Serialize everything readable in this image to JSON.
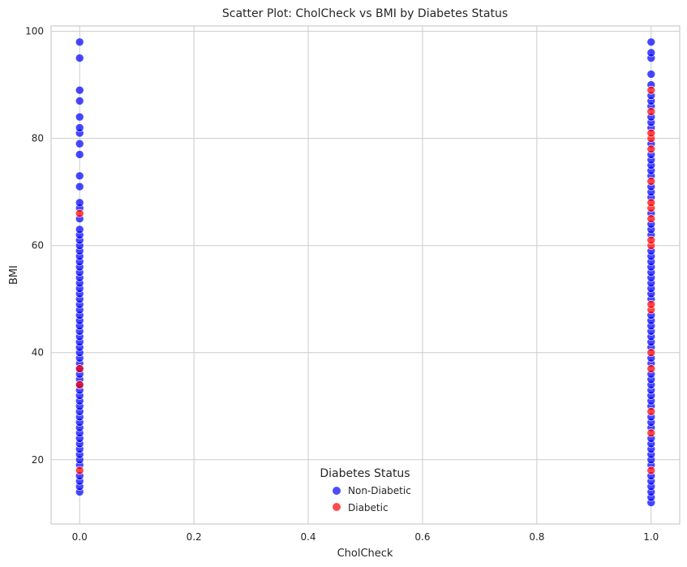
{
  "chart_data": {
    "type": "scatter",
    "title": "Scatter Plot: CholCheck vs BMI by Diabetes Status",
    "xlabel": "CholCheck",
    "ylabel": "BMI",
    "xlim": [
      -0.05,
      1.05
    ],
    "ylim": [
      8,
      101
    ],
    "x_ticks": [
      0.0,
      0.2,
      0.4,
      0.6,
      0.8,
      1.0
    ],
    "x_tick_labels": [
      "0.0",
      "0.2",
      "0.4",
      "0.6",
      "0.8",
      "1.0"
    ],
    "y_ticks": [
      20,
      40,
      60,
      80,
      100
    ],
    "y_tick_labels": [
      "20",
      "40",
      "60",
      "80",
      "100"
    ],
    "grid": true,
    "legend": {
      "title": "Diabetes Status",
      "position": "lower-center"
    },
    "series": [
      {
        "name": "Non-Diabetic",
        "color": "#0000ff",
        "points": [
          {
            "x": 0,
            "y": 14
          },
          {
            "x": 0,
            "y": 15
          },
          {
            "x": 0,
            "y": 16
          },
          {
            "x": 0,
            "y": 17
          },
          {
            "x": 0,
            "y": 19
          },
          {
            "x": 0,
            "y": 20
          },
          {
            "x": 0,
            "y": 21
          },
          {
            "x": 0,
            "y": 22
          },
          {
            "x": 0,
            "y": 23
          },
          {
            "x": 0,
            "y": 24
          },
          {
            "x": 0,
            "y": 25
          },
          {
            "x": 0,
            "y": 26
          },
          {
            "x": 0,
            "y": 27
          },
          {
            "x": 0,
            "y": 28
          },
          {
            "x": 0,
            "y": 29
          },
          {
            "x": 0,
            "y": 30
          },
          {
            "x": 0,
            "y": 31
          },
          {
            "x": 0,
            "y": 32
          },
          {
            "x": 0,
            "y": 33
          },
          {
            "x": 0,
            "y": 34
          },
          {
            "x": 0,
            "y": 35
          },
          {
            "x": 0,
            "y": 36
          },
          {
            "x": 0,
            "y": 37
          },
          {
            "x": 0,
            "y": 38
          },
          {
            "x": 0,
            "y": 39
          },
          {
            "x": 0,
            "y": 40
          },
          {
            "x": 0,
            "y": 41
          },
          {
            "x": 0,
            "y": 42
          },
          {
            "x": 0,
            "y": 43
          },
          {
            "x": 0,
            "y": 44
          },
          {
            "x": 0,
            "y": 45
          },
          {
            "x": 0,
            "y": 46
          },
          {
            "x": 0,
            "y": 47
          },
          {
            "x": 0,
            "y": 48
          },
          {
            "x": 0,
            "y": 49
          },
          {
            "x": 0,
            "y": 50
          },
          {
            "x": 0,
            "y": 51
          },
          {
            "x": 0,
            "y": 52
          },
          {
            "x": 0,
            "y": 53
          },
          {
            "x": 0,
            "y": 54
          },
          {
            "x": 0,
            "y": 55
          },
          {
            "x": 0,
            "y": 56
          },
          {
            "x": 0,
            "y": 57
          },
          {
            "x": 0,
            "y": 58
          },
          {
            "x": 0,
            "y": 59
          },
          {
            "x": 0,
            "y": 60
          },
          {
            "x": 0,
            "y": 61
          },
          {
            "x": 0,
            "y": 62
          },
          {
            "x": 0,
            "y": 63
          },
          {
            "x": 0,
            "y": 65
          },
          {
            "x": 0,
            "y": 67
          },
          {
            "x": 0,
            "y": 68
          },
          {
            "x": 0,
            "y": 71
          },
          {
            "x": 0,
            "y": 73
          },
          {
            "x": 0,
            "y": 77
          },
          {
            "x": 0,
            "y": 79
          },
          {
            "x": 0,
            "y": 81
          },
          {
            "x": 0,
            "y": 82
          },
          {
            "x": 0,
            "y": 84
          },
          {
            "x": 0,
            "y": 87
          },
          {
            "x": 0,
            "y": 89
          },
          {
            "x": 0,
            "y": 95
          },
          {
            "x": 0,
            "y": 98
          },
          {
            "x": 1,
            "y": 12
          },
          {
            "x": 1,
            "y": 13
          },
          {
            "x": 1,
            "y": 14
          },
          {
            "x": 1,
            "y": 15
          },
          {
            "x": 1,
            "y": 16
          },
          {
            "x": 1,
            "y": 17
          },
          {
            "x": 1,
            "y": 19
          },
          {
            "x": 1,
            "y": 20
          },
          {
            "x": 1,
            "y": 21
          },
          {
            "x": 1,
            "y": 22
          },
          {
            "x": 1,
            "y": 23
          },
          {
            "x": 1,
            "y": 24
          },
          {
            "x": 1,
            "y": 26
          },
          {
            "x": 1,
            "y": 27
          },
          {
            "x": 1,
            "y": 28
          },
          {
            "x": 1,
            "y": 30
          },
          {
            "x": 1,
            "y": 31
          },
          {
            "x": 1,
            "y": 32
          },
          {
            "x": 1,
            "y": 33
          },
          {
            "x": 1,
            "y": 34
          },
          {
            "x": 1,
            "y": 35
          },
          {
            "x": 1,
            "y": 36
          },
          {
            "x": 1,
            "y": 38
          },
          {
            "x": 1,
            "y": 39
          },
          {
            "x": 1,
            "y": 41
          },
          {
            "x": 1,
            "y": 42
          },
          {
            "x": 1,
            "y": 43
          },
          {
            "x": 1,
            "y": 44
          },
          {
            "x": 1,
            "y": 45
          },
          {
            "x": 1,
            "y": 46
          },
          {
            "x": 1,
            "y": 47
          },
          {
            "x": 1,
            "y": 50
          },
          {
            "x": 1,
            "y": 51
          },
          {
            "x": 1,
            "y": 52
          },
          {
            "x": 1,
            "y": 53
          },
          {
            "x": 1,
            "y": 54
          },
          {
            "x": 1,
            "y": 55
          },
          {
            "x": 1,
            "y": 56
          },
          {
            "x": 1,
            "y": 57
          },
          {
            "x": 1,
            "y": 58
          },
          {
            "x": 1,
            "y": 59
          },
          {
            "x": 1,
            "y": 62
          },
          {
            "x": 1,
            "y": 63
          },
          {
            "x": 1,
            "y": 64
          },
          {
            "x": 1,
            "y": 66
          },
          {
            "x": 1,
            "y": 69
          },
          {
            "x": 1,
            "y": 70
          },
          {
            "x": 1,
            "y": 71
          },
          {
            "x": 1,
            "y": 73
          },
          {
            "x": 1,
            "y": 74
          },
          {
            "x": 1,
            "y": 75
          },
          {
            "x": 1,
            "y": 76
          },
          {
            "x": 1,
            "y": 77
          },
          {
            "x": 1,
            "y": 79
          },
          {
            "x": 1,
            "y": 82
          },
          {
            "x": 1,
            "y": 83
          },
          {
            "x": 1,
            "y": 84
          },
          {
            "x": 1,
            "y": 86
          },
          {
            "x": 1,
            "y": 87
          },
          {
            "x": 1,
            "y": 88
          },
          {
            "x": 1,
            "y": 90
          },
          {
            "x": 1,
            "y": 92
          },
          {
            "x": 1,
            "y": 95
          },
          {
            "x": 1,
            "y": 96
          },
          {
            "x": 1,
            "y": 98
          }
        ]
      },
      {
        "name": "Diabetic",
        "color": "#ff0000",
        "points": [
          {
            "x": 0,
            "y": 18
          },
          {
            "x": 0,
            "y": 34
          },
          {
            "x": 0,
            "y": 37
          },
          {
            "x": 0,
            "y": 66
          },
          {
            "x": 1,
            "y": 18
          },
          {
            "x": 1,
            "y": 25
          },
          {
            "x": 1,
            "y": 29
          },
          {
            "x": 1,
            "y": 37
          },
          {
            "x": 1,
            "y": 40
          },
          {
            "x": 1,
            "y": 48
          },
          {
            "x": 1,
            "y": 49
          },
          {
            "x": 1,
            "y": 60
          },
          {
            "x": 1,
            "y": 61
          },
          {
            "x": 1,
            "y": 65
          },
          {
            "x": 1,
            "y": 67
          },
          {
            "x": 1,
            "y": 68
          },
          {
            "x": 1,
            "y": 72
          },
          {
            "x": 1,
            "y": 78
          },
          {
            "x": 1,
            "y": 80
          },
          {
            "x": 1,
            "y": 81
          },
          {
            "x": 1,
            "y": 85
          },
          {
            "x": 1,
            "y": 89
          }
        ]
      }
    ]
  }
}
